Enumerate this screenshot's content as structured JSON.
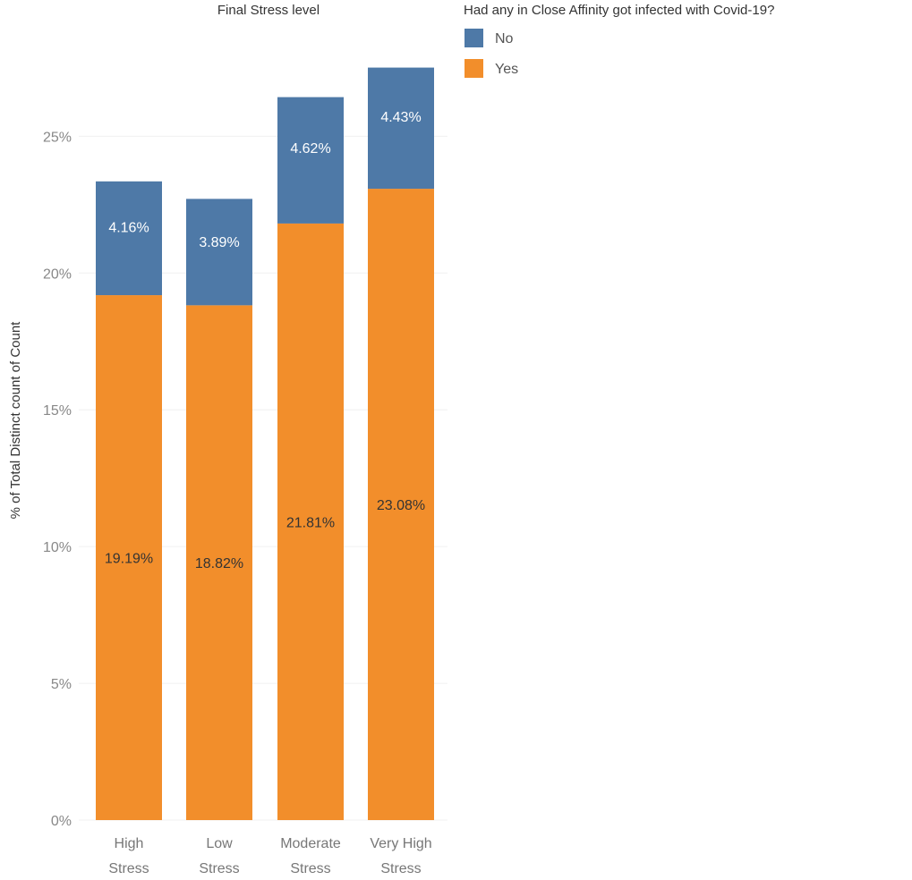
{
  "chart_data": {
    "type": "bar",
    "stacked": true,
    "title": "Final Stress level",
    "ylabel": "% of Total Distinct count of Count",
    "xlabel": "",
    "categories": [
      [
        "High",
        "Stress"
      ],
      [
        "Low",
        "Stress"
      ],
      [
        "Moderate",
        "Stress"
      ],
      [
        "Very High",
        "Stress"
      ]
    ],
    "series": [
      {
        "name": "Yes",
        "color": "#f28e2b",
        "values": [
          19.19,
          18.82,
          21.81,
          23.08
        ],
        "labels": [
          "19.19%",
          "18.82%",
          "21.81%",
          "23.08%"
        ]
      },
      {
        "name": "No",
        "color": "#4e79a7",
        "values": [
          4.16,
          3.89,
          4.62,
          4.43
        ],
        "labels": [
          "4.16%",
          "3.89%",
          "4.62%",
          "4.43%"
        ]
      }
    ],
    "ylim": [
      0,
      29
    ],
    "yticks": [
      0,
      5,
      10,
      15,
      20,
      25
    ],
    "ytick_labels": [
      "0%",
      "5%",
      "10%",
      "15%",
      "20%",
      "25%"
    ],
    "grid": true,
    "legend": {
      "title": "Had any in Close Affinity got infected with Covid-19?",
      "position": "top-right",
      "items": [
        {
          "name": "No",
          "color": "#4e79a7"
        },
        {
          "name": "Yes",
          "color": "#f28e2b"
        }
      ]
    }
  }
}
